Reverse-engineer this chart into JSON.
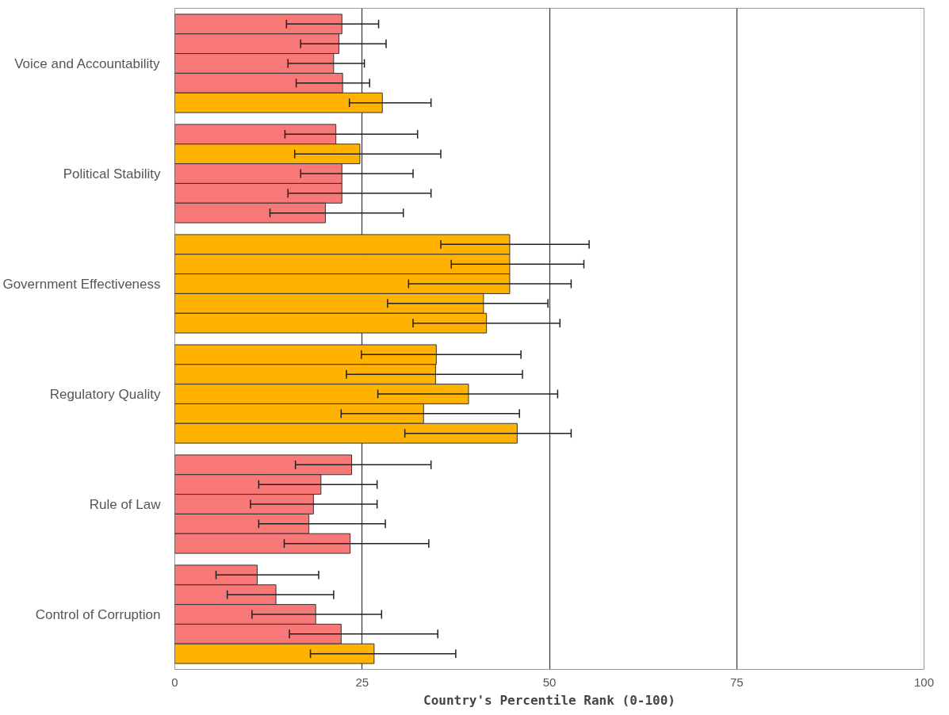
{
  "chart_data": {
    "type": "bar",
    "orientation": "horizontal",
    "xlabel": "Country's Percentile Rank (0-100)",
    "categories": [
      "Voice and Accountability",
      "Political Stability",
      "Government Effectiveness",
      "Regulatory Quality",
      "Rule of Law",
      "Control of Corruption"
    ],
    "series": [
      {
        "values": [
          22.3,
          21.5,
          44.7,
          34.9,
          23.6,
          11.0
        ],
        "colors": [
          "#f87878",
          "#f87878",
          "#ffb300",
          "#ffb300",
          "#f87878",
          "#f87878"
        ],
        "errors": [
          [
            14.9,
            27.2
          ],
          [
            14.7,
            32.4
          ],
          [
            35.5,
            55.3
          ],
          [
            24.9,
            46.2
          ],
          [
            16.1,
            34.2
          ],
          [
            5.5,
            19.2
          ]
        ]
      },
      {
        "values": [
          21.9,
          24.7,
          44.7,
          34.8,
          19.5,
          13.5
        ],
        "colors": [
          "#f87878",
          "#ffb300",
          "#ffb300",
          "#ffb300",
          "#f87878",
          "#f87878"
        ],
        "errors": [
          [
            16.8,
            28.2
          ],
          [
            16.0,
            35.5
          ],
          [
            36.9,
            54.6
          ],
          [
            22.9,
            46.4
          ],
          [
            11.2,
            27.0
          ],
          [
            7.0,
            21.2
          ]
        ]
      },
      {
        "values": [
          21.2,
          22.3,
          44.7,
          39.2,
          18.5,
          18.8
        ],
        "colors": [
          "#f87878",
          "#f87878",
          "#ffb300",
          "#ffb300",
          "#f87878",
          "#f87878"
        ],
        "errors": [
          [
            15.1,
            25.3
          ],
          [
            16.8,
            31.8
          ],
          [
            31.2,
            52.9
          ],
          [
            27.1,
            51.1
          ],
          [
            10.1,
            27.0
          ],
          [
            10.3,
            27.6
          ]
        ]
      },
      {
        "values": [
          22.4,
          22.3,
          41.2,
          33.2,
          17.9,
          22.2
        ],
        "colors": [
          "#f87878",
          "#f87878",
          "#ffb300",
          "#ffb300",
          "#f87878",
          "#f87878"
        ],
        "errors": [
          [
            16.2,
            26.0
          ],
          [
            15.1,
            34.2
          ],
          [
            28.4,
            49.8
          ],
          [
            22.2,
            46.0
          ],
          [
            11.2,
            28.1
          ],
          [
            15.3,
            35.1
          ]
        ]
      },
      {
        "values": [
          27.7,
          20.1,
          41.6,
          45.7,
          23.4,
          26.6
        ],
        "colors": [
          "#ffb300",
          "#f87878",
          "#ffb300",
          "#ffb300",
          "#f87878",
          "#ffb300"
        ],
        "errors": [
          [
            23.3,
            34.2
          ],
          [
            12.7,
            30.5
          ],
          [
            31.8,
            51.4
          ],
          [
            30.7,
            52.9
          ],
          [
            14.6,
            33.9
          ],
          [
            18.1,
            37.5
          ]
        ]
      }
    ],
    "xlim": [
      0,
      100
    ],
    "xticks": [
      0,
      25,
      50,
      75,
      100
    ],
    "grid": "x"
  }
}
